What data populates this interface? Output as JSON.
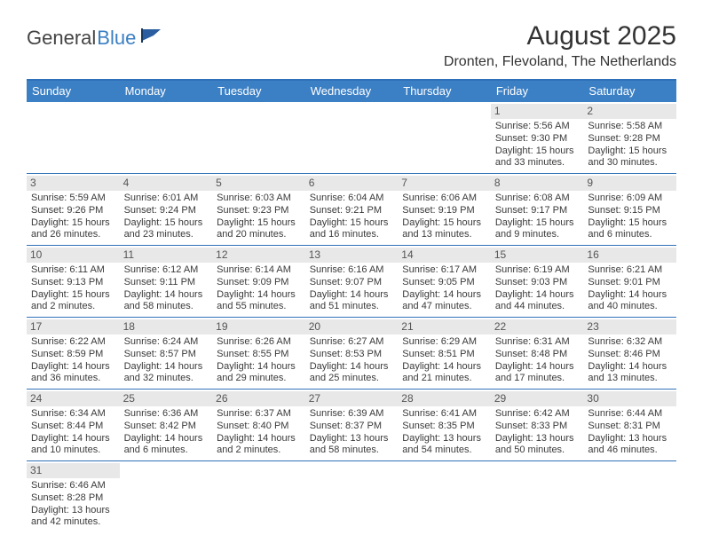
{
  "brand": {
    "part1": "General",
    "part2": "Blue"
  },
  "title": "August 2025",
  "location": "Dronten, Flevoland, The Netherlands",
  "colors": {
    "header_bg": "#3b7fc4",
    "border": "#2f71b8",
    "daynum_bg": "#e8e8e8",
    "text": "#3a3a3a"
  },
  "dow": [
    "Sunday",
    "Monday",
    "Tuesday",
    "Wednesday",
    "Thursday",
    "Friday",
    "Saturday"
  ],
  "weeks": [
    [
      null,
      null,
      null,
      null,
      null,
      {
        "n": "1",
        "sunrise": "Sunrise: 5:56 AM",
        "sunset": "Sunset: 9:30 PM",
        "day1": "Daylight: 15 hours",
        "day2": "and 33 minutes."
      },
      {
        "n": "2",
        "sunrise": "Sunrise: 5:58 AM",
        "sunset": "Sunset: 9:28 PM",
        "day1": "Daylight: 15 hours",
        "day2": "and 30 minutes."
      }
    ],
    [
      {
        "n": "3",
        "sunrise": "Sunrise: 5:59 AM",
        "sunset": "Sunset: 9:26 PM",
        "day1": "Daylight: 15 hours",
        "day2": "and 26 minutes."
      },
      {
        "n": "4",
        "sunrise": "Sunrise: 6:01 AM",
        "sunset": "Sunset: 9:24 PM",
        "day1": "Daylight: 15 hours",
        "day2": "and 23 minutes."
      },
      {
        "n": "5",
        "sunrise": "Sunrise: 6:03 AM",
        "sunset": "Sunset: 9:23 PM",
        "day1": "Daylight: 15 hours",
        "day2": "and 20 minutes."
      },
      {
        "n": "6",
        "sunrise": "Sunrise: 6:04 AM",
        "sunset": "Sunset: 9:21 PM",
        "day1": "Daylight: 15 hours",
        "day2": "and 16 minutes."
      },
      {
        "n": "7",
        "sunrise": "Sunrise: 6:06 AM",
        "sunset": "Sunset: 9:19 PM",
        "day1": "Daylight: 15 hours",
        "day2": "and 13 minutes."
      },
      {
        "n": "8",
        "sunrise": "Sunrise: 6:08 AM",
        "sunset": "Sunset: 9:17 PM",
        "day1": "Daylight: 15 hours",
        "day2": "and 9 minutes."
      },
      {
        "n": "9",
        "sunrise": "Sunrise: 6:09 AM",
        "sunset": "Sunset: 9:15 PM",
        "day1": "Daylight: 15 hours",
        "day2": "and 6 minutes."
      }
    ],
    [
      {
        "n": "10",
        "sunrise": "Sunrise: 6:11 AM",
        "sunset": "Sunset: 9:13 PM",
        "day1": "Daylight: 15 hours",
        "day2": "and 2 minutes."
      },
      {
        "n": "11",
        "sunrise": "Sunrise: 6:12 AM",
        "sunset": "Sunset: 9:11 PM",
        "day1": "Daylight: 14 hours",
        "day2": "and 58 minutes."
      },
      {
        "n": "12",
        "sunrise": "Sunrise: 6:14 AM",
        "sunset": "Sunset: 9:09 PM",
        "day1": "Daylight: 14 hours",
        "day2": "and 55 minutes."
      },
      {
        "n": "13",
        "sunrise": "Sunrise: 6:16 AM",
        "sunset": "Sunset: 9:07 PM",
        "day1": "Daylight: 14 hours",
        "day2": "and 51 minutes."
      },
      {
        "n": "14",
        "sunrise": "Sunrise: 6:17 AM",
        "sunset": "Sunset: 9:05 PM",
        "day1": "Daylight: 14 hours",
        "day2": "and 47 minutes."
      },
      {
        "n": "15",
        "sunrise": "Sunrise: 6:19 AM",
        "sunset": "Sunset: 9:03 PM",
        "day1": "Daylight: 14 hours",
        "day2": "and 44 minutes."
      },
      {
        "n": "16",
        "sunrise": "Sunrise: 6:21 AM",
        "sunset": "Sunset: 9:01 PM",
        "day1": "Daylight: 14 hours",
        "day2": "and 40 minutes."
      }
    ],
    [
      {
        "n": "17",
        "sunrise": "Sunrise: 6:22 AM",
        "sunset": "Sunset: 8:59 PM",
        "day1": "Daylight: 14 hours",
        "day2": "and 36 minutes."
      },
      {
        "n": "18",
        "sunrise": "Sunrise: 6:24 AM",
        "sunset": "Sunset: 8:57 PM",
        "day1": "Daylight: 14 hours",
        "day2": "and 32 minutes."
      },
      {
        "n": "19",
        "sunrise": "Sunrise: 6:26 AM",
        "sunset": "Sunset: 8:55 PM",
        "day1": "Daylight: 14 hours",
        "day2": "and 29 minutes."
      },
      {
        "n": "20",
        "sunrise": "Sunrise: 6:27 AM",
        "sunset": "Sunset: 8:53 PM",
        "day1": "Daylight: 14 hours",
        "day2": "and 25 minutes."
      },
      {
        "n": "21",
        "sunrise": "Sunrise: 6:29 AM",
        "sunset": "Sunset: 8:51 PM",
        "day1": "Daylight: 14 hours",
        "day2": "and 21 minutes."
      },
      {
        "n": "22",
        "sunrise": "Sunrise: 6:31 AM",
        "sunset": "Sunset: 8:48 PM",
        "day1": "Daylight: 14 hours",
        "day2": "and 17 minutes."
      },
      {
        "n": "23",
        "sunrise": "Sunrise: 6:32 AM",
        "sunset": "Sunset: 8:46 PM",
        "day1": "Daylight: 14 hours",
        "day2": "and 13 minutes."
      }
    ],
    [
      {
        "n": "24",
        "sunrise": "Sunrise: 6:34 AM",
        "sunset": "Sunset: 8:44 PM",
        "day1": "Daylight: 14 hours",
        "day2": "and 10 minutes."
      },
      {
        "n": "25",
        "sunrise": "Sunrise: 6:36 AM",
        "sunset": "Sunset: 8:42 PM",
        "day1": "Daylight: 14 hours",
        "day2": "and 6 minutes."
      },
      {
        "n": "26",
        "sunrise": "Sunrise: 6:37 AM",
        "sunset": "Sunset: 8:40 PM",
        "day1": "Daylight: 14 hours",
        "day2": "and 2 minutes."
      },
      {
        "n": "27",
        "sunrise": "Sunrise: 6:39 AM",
        "sunset": "Sunset: 8:37 PM",
        "day1": "Daylight: 13 hours",
        "day2": "and 58 minutes."
      },
      {
        "n": "28",
        "sunrise": "Sunrise: 6:41 AM",
        "sunset": "Sunset: 8:35 PM",
        "day1": "Daylight: 13 hours",
        "day2": "and 54 minutes."
      },
      {
        "n": "29",
        "sunrise": "Sunrise: 6:42 AM",
        "sunset": "Sunset: 8:33 PM",
        "day1": "Daylight: 13 hours",
        "day2": "and 50 minutes."
      },
      {
        "n": "30",
        "sunrise": "Sunrise: 6:44 AM",
        "sunset": "Sunset: 8:31 PM",
        "day1": "Daylight: 13 hours",
        "day2": "and 46 minutes."
      }
    ],
    [
      {
        "n": "31",
        "sunrise": "Sunrise: 6:46 AM",
        "sunset": "Sunset: 8:28 PM",
        "day1": "Daylight: 13 hours",
        "day2": "and 42 minutes."
      },
      null,
      null,
      null,
      null,
      null,
      null
    ]
  ]
}
